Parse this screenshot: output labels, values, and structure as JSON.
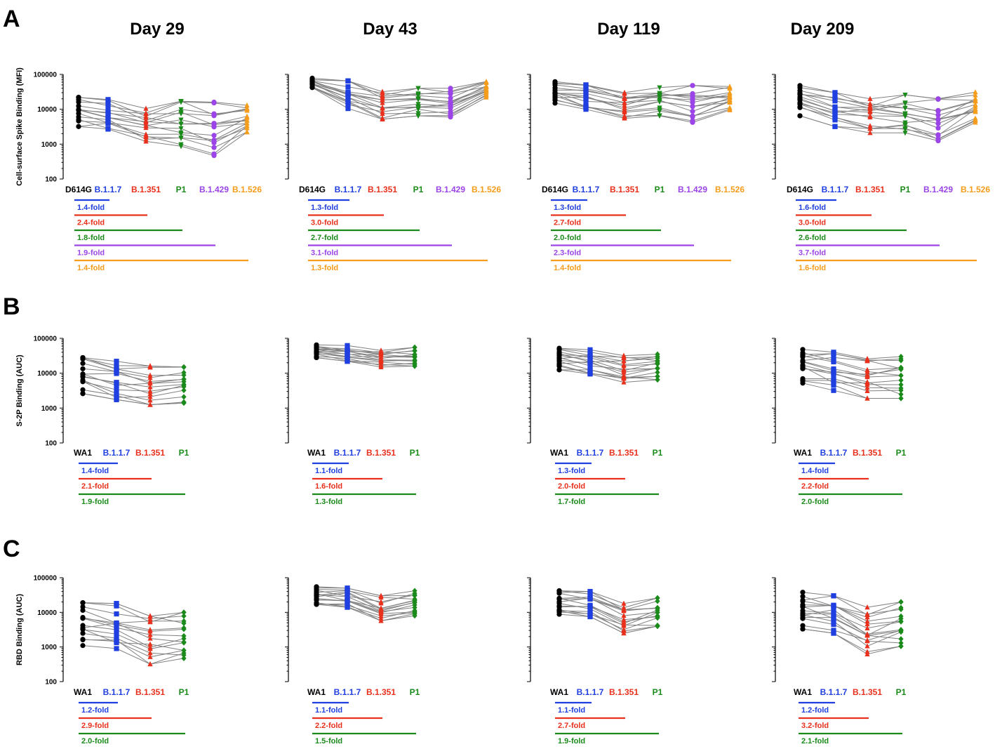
{
  "panel_letters": [
    "A",
    "B",
    "C"
  ],
  "day_titles": [
    "Day 29",
    "Day 43",
    "Day 119",
    "Day 209"
  ],
  "colors": {
    "D614G": "#000000",
    "WA1": "#000000",
    "B.1.1.7": "#1f3fe0",
    "B.1.351": "#e8301c",
    "P1": "#1a8a1a",
    "B.1.429": "#9b44e8",
    "B.1.526": "#f59c1a",
    "lines": "#808080"
  },
  "chart_data": [
    {
      "type": "scatter",
      "row": "A",
      "ylabel": "Cell-surface Spike Binding (MFI)",
      "yscale": "log",
      "ylim": [
        100,
        100000
      ],
      "yticks": [
        "100000",
        "10000",
        "1000",
        "100"
      ],
      "categories": [
        "D614G",
        "B.1.1.7",
        "B.1.351",
        "P1",
        "B.1.429",
        "B.1.526"
      ],
      "markers": [
        "circle",
        "square",
        "triangle-up",
        "triangle-down",
        "circle",
        "triangle-up"
      ],
      "panels": [
        {
          "day": "Day 29",
          "ranges": [
            [
              3200,
              22000
            ],
            [
              2700,
              19000
            ],
            [
              1200,
              10500
            ],
            [
              870,
              17000
            ],
            [
              470,
              16000
            ],
            [
              2200,
              13000
            ]
          ],
          "folds": [
            "1.4-fold",
            "2.4-fold",
            "1.8-fold",
            "1.9-fold",
            "1.4-fold"
          ]
        },
        {
          "day": "Day 43",
          "ranges": [
            [
              42000,
              78000
            ],
            [
              10500,
              65000
            ],
            [
              5200,
              32000
            ],
            [
              6500,
              40000
            ],
            [
              6000,
              40000
            ],
            [
              22000,
              62000
            ]
          ],
          "folds": [
            "1.3-fold",
            "3.0-fold",
            "2.7-fold",
            "3.1-fold",
            "1.3-fold"
          ]
        },
        {
          "day": "Day 119",
          "ranges": [
            [
              15000,
              62000
            ],
            [
              10000,
              50000
            ],
            [
              5500,
              30000
            ],
            [
              6500,
              42000
            ],
            [
              4200,
              48000
            ],
            [
              9500,
              45000
            ]
          ],
          "folds": [
            "1.3-fold",
            "2.7-fold",
            "2.0-fold",
            "2.3-fold",
            "1.4-fold"
          ]
        },
        {
          "day": "Day 209",
          "ranges": [
            [
              6500,
              48000
            ],
            [
              3200,
              30000
            ],
            [
              2100,
              20000
            ],
            [
              2100,
              26000
            ],
            [
              1250,
              20000
            ],
            [
              4200,
              31000
            ]
          ],
          "folds": [
            "1.6-fold",
            "3.0-fold",
            "2.6-fold",
            "3.7-fold",
            "1.6-fold"
          ]
        }
      ]
    },
    {
      "type": "scatter",
      "row": "B",
      "ylabel": "S-2P Binding (AUC)",
      "yscale": "log",
      "ylim": [
        100,
        100000
      ],
      "yticks": [
        "100000",
        "10000",
        "1000",
        "100"
      ],
      "categories": [
        "WA1",
        "B.1.1.7",
        "B.1.351",
        "P1"
      ],
      "markers": [
        "circle",
        "square",
        "triangle-up",
        "diamond"
      ],
      "panels": [
        {
          "day": "Day 29",
          "ranges": [
            [
              2600,
              28000
            ],
            [
              1750,
              22000
            ],
            [
              1250,
              16000
            ],
            [
              1400,
              15000
            ]
          ],
          "folds": [
            "1.4-fold",
            "2.1-fold",
            "1.9-fold"
          ]
        },
        {
          "day": "Day 43",
          "ranges": [
            [
              28000,
              65000
            ],
            [
              22000,
              62000
            ],
            [
              15000,
              45000
            ],
            [
              16000,
              55000
            ]
          ],
          "folds": [
            "1.1-fold",
            "1.6-fold",
            "1.3-fold"
          ]
        },
        {
          "day": "Day 119",
          "ranges": [
            [
              12500,
              52000
            ],
            [
              9500,
              47000
            ],
            [
              5500,
              32000
            ],
            [
              6500,
              35000
            ]
          ],
          "folds": [
            "1.3-fold",
            "2.0-fold",
            "1.7-fold"
          ]
        },
        {
          "day": "Day 209",
          "ranges": [
            [
              5200,
              48000
            ],
            [
              3200,
              40000
            ],
            [
              1900,
              26000
            ],
            [
              1900,
              30000
            ]
          ],
          "folds": [
            "1.4-fold",
            "2.2-fold",
            "2.0-fold"
          ]
        }
      ]
    },
    {
      "type": "scatter",
      "row": "C",
      "ylabel": "RBD Binding (AUC)",
      "yscale": "log",
      "ylim": [
        100,
        100000
      ],
      "yticks": [
        "100000",
        "10000",
        "1000",
        "100"
      ],
      "categories": [
        "WA1",
        "B.1.1.7",
        "B.1.351",
        "P1"
      ],
      "markers": [
        "circle",
        "square",
        "triangle-up",
        "diamond"
      ],
      "panels": [
        {
          "day": "Day 29",
          "ranges": [
            [
              1100,
              19000
            ],
            [
              900,
              18000
            ],
            [
              320,
              7800
            ],
            [
              470,
              10000
            ]
          ],
          "folds": [
            "1.2-fold",
            "2.9-fold",
            "2.0-fold"
          ]
        },
        {
          "day": "Day 43",
          "ranges": [
            [
              17000,
              55000
            ],
            [
              14000,
              50000
            ],
            [
              5700,
              30000
            ],
            [
              8000,
              42000
            ]
          ],
          "folds": [
            "1.1-fold",
            "2.2-fold",
            "1.5-fold"
          ]
        },
        {
          "day": "Day 119",
          "ranges": [
            [
              8800,
              42000
            ],
            [
              7500,
              40000
            ],
            [
              2500,
              18000
            ],
            [
              4000,
              26000
            ]
          ],
          "folds": [
            "1.1-fold",
            "2.7-fold",
            "1.9-fold"
          ]
        },
        {
          "day": "Day 209",
          "ranges": [
            [
              3300,
              38000
            ],
            [
              2500,
              30000
            ],
            [
              620,
              14000
            ],
            [
              1050,
              20000
            ]
          ],
          "folds": [
            "1.2-fold",
            "3.2-fold",
            "2.1-fold"
          ]
        }
      ]
    }
  ]
}
